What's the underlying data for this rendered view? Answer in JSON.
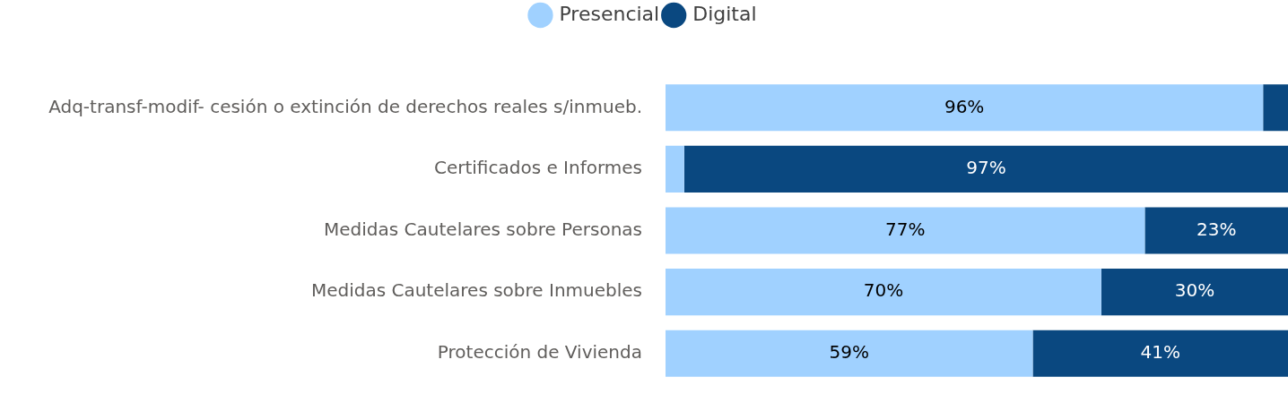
{
  "chart_data": {
    "type": "bar",
    "orientation": "horizontal",
    "stacked": true,
    "legend": "top",
    "tick_labels": "y",
    "xlim": [
      0,
      100
    ],
    "categories": [
      "Adq-transf-modif- cesión o extinción de derechos reales s/inmueb.",
      "Certificados e Informes",
      "Medidas Cautelares sobre Personas",
      "Medidas Cautelares sobre Inmuebles",
      "Protección de Vivienda"
    ],
    "series": [
      {
        "name": "Presencial",
        "color": "#a0d1ff",
        "values": [
          96,
          3,
          77,
          70,
          59
        ],
        "value_labels": [
          "96%",
          null,
          "77%",
          "70%",
          "59%"
        ]
      },
      {
        "name": "Digital",
        "color": "#0a4880",
        "values": [
          4,
          97,
          23,
          30,
          41
        ],
        "value_labels": [
          null,
          "97%",
          "23%",
          "30%",
          "41%"
        ]
      }
    ]
  }
}
